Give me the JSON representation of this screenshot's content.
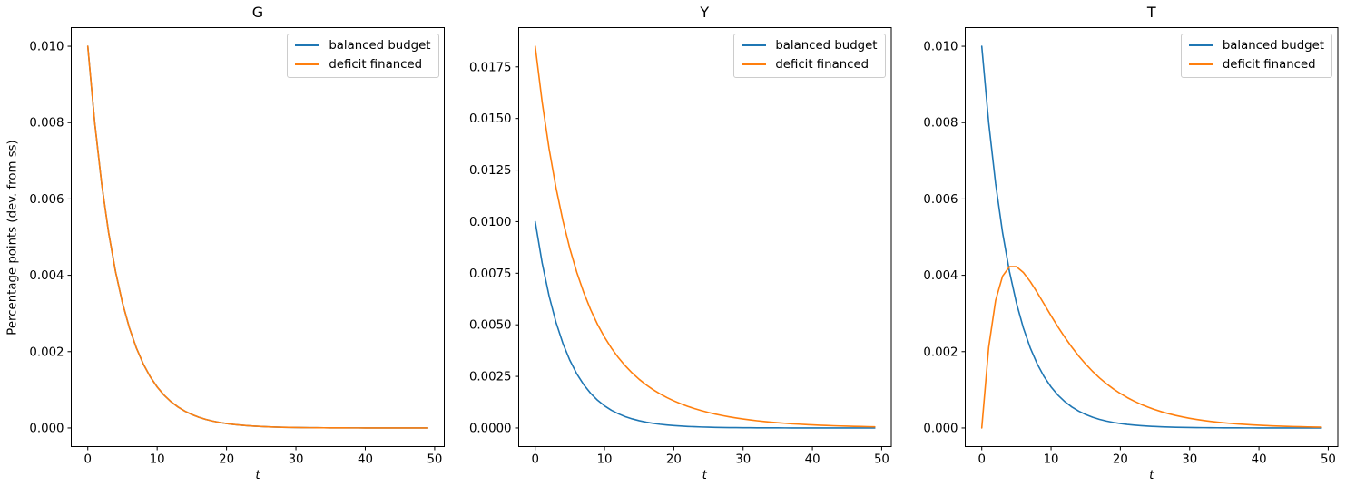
{
  "figure": {
    "background": "#ffffff",
    "text_color": "#000000"
  },
  "colors": {
    "balanced_budget": "#1f77b4",
    "deficit_financed": "#ff7f0e",
    "legend_border": "#cccccc",
    "axes": "#000000"
  },
  "chart_data": [
    {
      "type": "line",
      "title": "G",
      "xlabel": "t",
      "ylabel": "Percentage points (dev. from ss)",
      "grid": false,
      "legend_position": "upper right",
      "xlim": [
        -2.45,
        51.45
      ],
      "ylim": [
        -0.0005,
        0.0105
      ],
      "xticks": [
        0,
        10,
        20,
        30,
        40,
        50
      ],
      "xtick_labels": [
        "0",
        "10",
        "20",
        "30",
        "40",
        "50"
      ],
      "yticks": [
        0,
        0.002,
        0.004,
        0.006,
        0.008,
        0.01
      ],
      "ytick_labels": [
        "0.000",
        "0.002",
        "0.004",
        "0.006",
        "0.008",
        "0.010"
      ],
      "x": [
        0,
        1,
        2,
        3,
        4,
        5,
        6,
        7,
        8,
        9,
        10,
        11,
        12,
        13,
        14,
        15,
        16,
        17,
        18,
        19,
        20,
        21,
        22,
        23,
        24,
        25,
        26,
        27,
        28,
        29,
        30,
        31,
        32,
        33,
        34,
        35,
        36,
        37,
        38,
        39,
        40,
        41,
        42,
        43,
        44,
        45,
        46,
        47,
        48,
        49
      ],
      "series": [
        {
          "name": "balanced budget",
          "color": "#1f77b4",
          "values": [
            0.01,
            0.008,
            0.0064,
            0.00512,
            0.004096,
            0.0032768,
            0.0026214,
            0.0020972,
            0.0016777,
            0.0013422,
            0.0010737,
            0.000859,
            0.0006872,
            0.0005498,
            0.0004398,
            0.0003518,
            0.0002815,
            0.0002252,
            0.0001801,
            0.0001441,
            0.0001153,
            9.22e-05,
            7.38e-05,
            5.9e-05,
            4.72e-05,
            3.78e-05,
            3.02e-05,
            2.42e-05,
            1.93e-05,
            1.55e-05,
            1.24e-05,
            9.9e-06,
            7.9e-06,
            6.3e-06,
            5.1e-06,
            4.1e-06,
            3.2e-06,
            2.6e-06,
            2.1e-06,
            1.7e-06,
            1.3e-06,
            1.1e-06,
            9e-07,
            7e-07,
            6e-07,
            4e-07,
            4e-07,
            3e-07,
            2e-07,
            2e-07
          ]
        },
        {
          "name": "deficit financed",
          "color": "#ff7f0e",
          "values": [
            0.01,
            0.008,
            0.0064,
            0.00512,
            0.004096,
            0.0032768,
            0.0026214,
            0.0020972,
            0.0016777,
            0.0013422,
            0.0010737,
            0.000859,
            0.0006872,
            0.0005498,
            0.0004398,
            0.0003518,
            0.0002815,
            0.0002252,
            0.0001801,
            0.0001441,
            0.0001153,
            9.22e-05,
            7.38e-05,
            5.9e-05,
            4.72e-05,
            3.78e-05,
            3.02e-05,
            2.42e-05,
            1.93e-05,
            1.55e-05,
            1.24e-05,
            9.9e-06,
            7.9e-06,
            6.3e-06,
            5.1e-06,
            4.1e-06,
            3.2e-06,
            2.6e-06,
            2.1e-06,
            1.7e-06,
            1.3e-06,
            1.1e-06,
            9e-07,
            7e-07,
            6e-07,
            4e-07,
            4e-07,
            3e-07,
            2e-07,
            2e-07
          ]
        }
      ]
    },
    {
      "type": "line",
      "title": "Y",
      "xlabel": "t",
      "ylabel": "",
      "grid": false,
      "legend_position": "upper right",
      "xlim": [
        -2.45,
        51.45
      ],
      "ylim": [
        -0.000925,
        0.019425
      ],
      "xticks": [
        0,
        10,
        20,
        30,
        40,
        50
      ],
      "xtick_labels": [
        "0",
        "10",
        "20",
        "30",
        "40",
        "50"
      ],
      "yticks": [
        0,
        0.0025,
        0.005,
        0.0075,
        0.01,
        0.0125,
        0.015,
        0.0175
      ],
      "ytick_labels": [
        "0.0000",
        "0.0025",
        "0.0050",
        "0.0075",
        "0.0100",
        "0.0125",
        "0.0150",
        "0.0175"
      ],
      "x": [
        0,
        1,
        2,
        3,
        4,
        5,
        6,
        7,
        8,
        9,
        10,
        11,
        12,
        13,
        14,
        15,
        16,
        17,
        18,
        19,
        20,
        21,
        22,
        23,
        24,
        25,
        26,
        27,
        28,
        29,
        30,
        31,
        32,
        33,
        34,
        35,
        36,
        37,
        38,
        39,
        40,
        41,
        42,
        43,
        44,
        45,
        46,
        47,
        48,
        49
      ],
      "series": [
        {
          "name": "balanced budget",
          "color": "#1f77b4",
          "values": [
            0.01,
            0.008,
            0.0064,
            0.00512,
            0.004096,
            0.0032768,
            0.0026214,
            0.0020972,
            0.0016777,
            0.0013422,
            0.0010737,
            0.000859,
            0.0006872,
            0.0005498,
            0.0004398,
            0.0003518,
            0.0002815,
            0.0002252,
            0.0001801,
            0.0001441,
            0.0001153,
            9.22e-05,
            7.38e-05,
            5.9e-05,
            4.72e-05,
            3.78e-05,
            3.02e-05,
            2.42e-05,
            1.93e-05,
            1.55e-05,
            1.24e-05,
            9.9e-06,
            7.9e-06,
            6.3e-06,
            5.1e-06,
            4.1e-06,
            3.2e-06,
            2.6e-06,
            2.1e-06,
            1.7e-06,
            1.3e-06,
            1.1e-06,
            9e-07,
            7e-07,
            6e-07,
            4e-07,
            4e-07,
            3e-07,
            2e-07,
            2e-07
          ]
        },
        {
          "name": "deficit financed",
          "color": "#ff7f0e",
          "values": [
            0.0185,
            0.0158,
            0.01354,
            0.011642,
            0.0100426,
            0.0086902,
            0.0075426,
            0.0065656,
            0.0057308,
            0.0050151,
            0.0043995,
            0.0038683,
            0.0034084,
            0.0030092,
            0.0026615,
            0.002358,
            0.0020923,
            0.0018591,
            0.0016541,
            0.0014734,
            0.0013138,
            0.0011726,
            0.0010475,
            0.0009365,
            0.0008378,
            0.00075,
            0.0006718,
            0.000602,
            0.0005397,
            0.0004841,
            0.0004344,
            0.0003899,
            0.0003501,
            0.0003144,
            0.0002824,
            0.0002537,
            0.0002281,
            0.000205,
            0.0001843,
            0.0001656,
            0.0001489,
            0.0001339,
            0.0001204,
            0.0001084,
            9.75e-05,
            8.77e-05,
            7.89e-05,
            7.09e-05,
            6.38e-05,
            5.75e-05
          ]
        }
      ]
    },
    {
      "type": "line",
      "title": "T",
      "xlabel": "t",
      "ylabel": "",
      "grid": false,
      "legend_position": "upper right",
      "xlim": [
        -2.45,
        51.45
      ],
      "ylim": [
        -0.0005,
        0.0105
      ],
      "xticks": [
        0,
        10,
        20,
        30,
        40,
        50
      ],
      "xtick_labels": [
        "0",
        "10",
        "20",
        "30",
        "40",
        "50"
      ],
      "yticks": [
        0,
        0.002,
        0.004,
        0.006,
        0.008,
        0.01
      ],
      "ytick_labels": [
        "0.000",
        "0.002",
        "0.004",
        "0.006",
        "0.008",
        "0.010"
      ],
      "x": [
        0,
        1,
        2,
        3,
        4,
        5,
        6,
        7,
        8,
        9,
        10,
        11,
        12,
        13,
        14,
        15,
        16,
        17,
        18,
        19,
        20,
        21,
        22,
        23,
        24,
        25,
        26,
        27,
        28,
        29,
        30,
        31,
        32,
        33,
        34,
        35,
        36,
        37,
        38,
        39,
        40,
        41,
        42,
        43,
        44,
        45,
        46,
        47,
        48,
        49
      ],
      "series": [
        {
          "name": "balanced budget",
          "color": "#1f77b4",
          "values": [
            0.01,
            0.008,
            0.0064,
            0.00512,
            0.004096,
            0.0032768,
            0.0026214,
            0.0020972,
            0.0016777,
            0.0013422,
            0.0010737,
            0.000859,
            0.0006872,
            0.0005498,
            0.0004398,
            0.0003518,
            0.0002815,
            0.0002252,
            0.0001801,
            0.0001441,
            0.0001153,
            9.22e-05,
            7.38e-05,
            5.9e-05,
            4.72e-05,
            3.78e-05,
            3.02e-05,
            2.42e-05,
            1.93e-05,
            1.55e-05,
            1.24e-05,
            9.9e-06,
            7.9e-06,
            6.3e-06,
            5.1e-06,
            4.1e-06,
            3.2e-06,
            2.6e-06,
            2.1e-06,
            1.7e-06,
            1.3e-06,
            1.1e-06,
            9e-07,
            7e-07,
            6e-07,
            4e-07,
            4e-07,
            3e-07,
            2e-07,
            2e-07
          ]
        },
        {
          "name": "deficit financed",
          "color": "#ff7f0e",
          "values": [
            0.0,
            0.002115,
            0.0033417,
            0.003977,
            0.0042252,
            0.004226,
            0.0040744,
            0.0038343,
            0.0035483,
            0.0032444,
            0.0029405,
            0.0026474,
            0.0023715,
            0.0021162,
            0.0018827,
            0.0016712,
            0.0014807,
            0.00131,
            0.0011577,
            0.0010222,
            0.000902,
            0.0007954,
            0.0007012,
            0.0006179,
            0.0005443,
            0.0004794,
            0.0004221,
            0.0003717,
            0.0003272,
            0.000288,
            0.0002536,
            0.0002232,
            0.0001964,
            0.0001729,
            0.0001521,
            0.0001339,
            0.0001178,
            0.0001037,
            9.13e-05,
            8.03e-05,
            7.07e-05,
            6.22e-05,
            5.47e-05,
            4.82e-05,
            4.24e-05,
            3.73e-05,
            3.28e-05,
            2.89e-05,
            2.54e-05,
            2.24e-05
          ]
        }
      ]
    }
  ]
}
